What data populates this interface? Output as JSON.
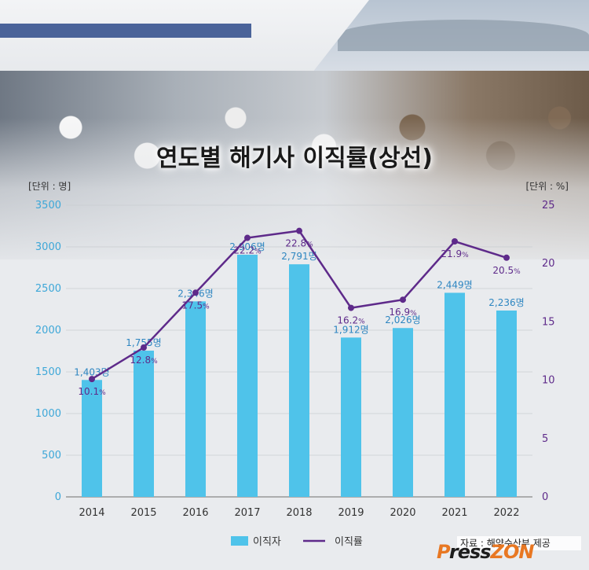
{
  "chart_data": {
    "type": "bar",
    "title": "연도별 해기사 이직률(상선)",
    "categories": [
      "2014",
      "2015",
      "2016",
      "2017",
      "2018",
      "2019",
      "2020",
      "2021",
      "2022"
    ],
    "series": [
      {
        "name": "이직자",
        "axis": "left",
        "type": "bar",
        "values": [
          1403,
          1755,
          2346,
          2906,
          2791,
          1912,
          2026,
          2449,
          2236
        ],
        "labels": [
          "1,403명",
          "1,755명",
          "2,346명",
          "2,906명",
          "2,791명",
          "1,912명",
          "2,026명",
          "2,449명",
          "2,236명"
        ],
        "color": "#4fc3ea"
      },
      {
        "name": "이직률",
        "axis": "right",
        "type": "line",
        "values": [
          10.1,
          12.8,
          17.5,
          22.2,
          22.8,
          16.2,
          16.9,
          21.9,
          20.5
        ],
        "labels": [
          "10.1",
          "12.8",
          "17.5",
          "22.2",
          "22.8",
          "16.2",
          "16.9",
          "21.9",
          "20.5"
        ],
        "label_unit": "%",
        "color": "#5e2a8a"
      }
    ],
    "left_axis": {
      "unit_label": "[단위 : 명]",
      "range": [
        0,
        3500
      ],
      "ticks": [
        "0",
        "500",
        "1000",
        "1500",
        "2000",
        "2500",
        "3000",
        "3500"
      ]
    },
    "right_axis": {
      "unit_label": "[단위 : %]",
      "range": [
        0,
        25
      ],
      "ticks": [
        "0",
        "5",
        "10",
        "15",
        "20",
        "25"
      ]
    },
    "grid": true,
    "legend_position": "bottom-center"
  },
  "credit": {
    "source": "자료 : 해양수산부 제공",
    "logo_p": "P",
    "logo_ress": "ress",
    "logo_zon": "ZON"
  },
  "colors": {
    "bar": "#4fc3ea",
    "line": "#5e2a8a",
    "left_axis_text": "#3da7d8",
    "bar_label": "#2e86c1"
  }
}
